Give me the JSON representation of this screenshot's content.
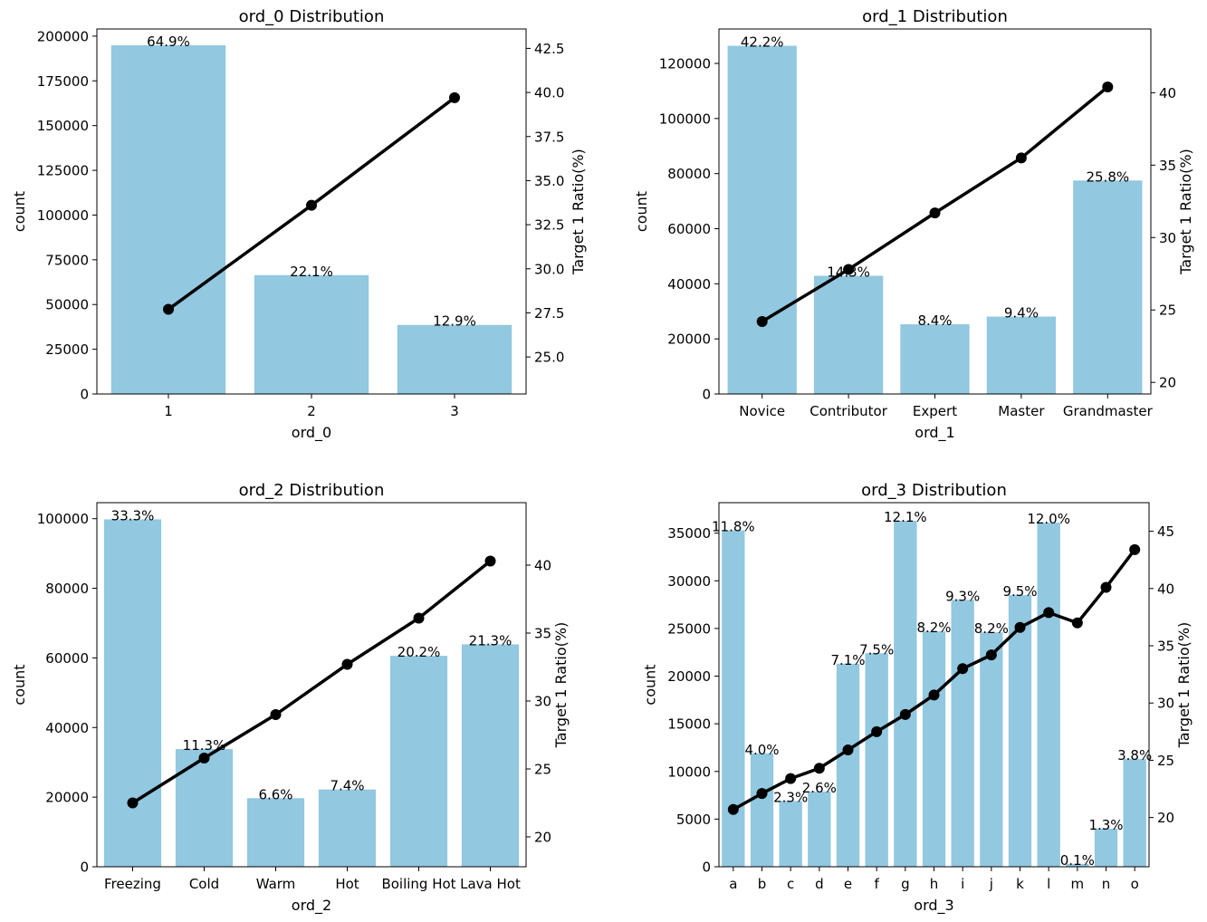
{
  "colors": {
    "bar": "#92c8e0",
    "line": "#000000",
    "axis": "#000000",
    "background": "#ffffff"
  },
  "chart_data": [
    {
      "type": "bar",
      "title": "ord_0 Distribution",
      "xlabel": "ord_0",
      "ylabel": "count",
      "ylabel_right": "Target 1 Ratio(%)",
      "categories": [
        "1",
        "2",
        "3"
      ],
      "values": [
        194900,
        66400,
        38600
      ],
      "percent_labels": [
        "64.9%",
        "22.1%",
        "12.9%"
      ],
      "ratio": [
        27.7,
        33.6,
        39.7
      ],
      "ylim": [
        0,
        204000
      ],
      "yticks": [
        0,
        25000,
        50000,
        75000,
        100000,
        125000,
        150000,
        175000,
        200000
      ],
      "ylim_right": [
        22.9,
        43.6
      ],
      "yticks_right": [
        25.0,
        27.5,
        30.0,
        32.5,
        35.0,
        37.5,
        40.0,
        42.5
      ],
      "ytick_labels_right": [
        "25.0",
        "27.5",
        "30.0",
        "32.5",
        "35.0",
        "37.5",
        "40.0",
        "42.5"
      ]
    },
    {
      "type": "bar",
      "title": "ord_1 Distribution",
      "xlabel": "ord_1",
      "ylabel": "count",
      "ylabel_right": "Target 1 Ratio(%)",
      "categories": [
        "Novice",
        "Contributor",
        "Expert",
        "Master",
        "Grandmaster"
      ],
      "values": [
        126400,
        42900,
        25300,
        28100,
        77500
      ],
      "percent_labels": [
        "42.2%",
        "14.3%",
        "8.4%",
        "9.4%",
        "25.8%"
      ],
      "ratio": [
        24.2,
        27.8,
        31.7,
        35.5,
        40.4
      ],
      "ylim": [
        0,
        132500
      ],
      "yticks": [
        0,
        20000,
        40000,
        60000,
        80000,
        100000,
        120000
      ],
      "ylim_right": [
        19.2,
        44.4
      ],
      "yticks_right": [
        20,
        25,
        30,
        35,
        40
      ],
      "ytick_labels_right": [
        "20",
        "25",
        "30",
        "35",
        "40"
      ]
    },
    {
      "type": "bar",
      "title": "ord_2 Distribution",
      "xlabel": "ord_2",
      "ylabel": "count",
      "ylabel_right": "Target 1 Ratio(%)",
      "categories": [
        "Freezing",
        "Cold",
        "Warm",
        "Hot",
        "Boiling Hot",
        "Lava Hot"
      ],
      "values": [
        99800,
        33800,
        19700,
        22200,
        60600,
        63900
      ],
      "percent_labels": [
        "33.3%",
        "11.3%",
        "6.6%",
        "7.4%",
        "20.2%",
        "21.3%"
      ],
      "ratio": [
        22.5,
        25.8,
        29.0,
        32.7,
        36.1,
        40.3
      ],
      "ylim": [
        0,
        104600
      ],
      "yticks": [
        0,
        20000,
        40000,
        60000,
        80000,
        100000
      ],
      "ylim_right": [
        17.8,
        44.6
      ],
      "yticks_right": [
        20,
        25,
        30,
        35,
        40
      ],
      "ytick_labels_right": [
        "20",
        "25",
        "30",
        "35",
        "40"
      ]
    },
    {
      "type": "bar",
      "title": "ord_3 Distribution",
      "xlabel": "ord_3",
      "ylabel": "count",
      "ylabel_right": "Target 1 Ratio(%)",
      "categories": [
        "a",
        "b",
        "c",
        "d",
        "e",
        "f",
        "g",
        "h",
        "i",
        "j",
        "k",
        "l",
        "m",
        "n",
        "o"
      ],
      "values": [
        35300,
        11900,
        6900,
        7900,
        21300,
        22400,
        36300,
        24700,
        28000,
        24600,
        28500,
        36100,
        300,
        4000,
        11300
      ],
      "percent_labels": [
        "11.8%",
        "4.0%",
        "2.3%",
        "2.6%",
        "7.1%",
        "7.5%",
        "12.1%",
        "8.2%",
        "9.3%",
        "8.2%",
        "9.5%",
        "12.0%",
        "0.1%",
        "1.3%",
        "3.8%"
      ],
      "ratio": [
        20.7,
        22.1,
        23.4,
        24.3,
        25.9,
        27.5,
        29.0,
        30.7,
        33.0,
        34.2,
        36.6,
        37.9,
        37.0,
        40.1,
        43.4
      ],
      "ylim": [
        0,
        38200
      ],
      "yticks": [
        0,
        5000,
        10000,
        15000,
        20000,
        25000,
        30000,
        35000
      ],
      "ylim_right": [
        15.7,
        47.5
      ],
      "yticks_right": [
        20,
        25,
        30,
        35,
        40,
        45
      ],
      "ytick_labels_right": [
        "20",
        "25",
        "30",
        "35",
        "40",
        "45"
      ]
    }
  ]
}
